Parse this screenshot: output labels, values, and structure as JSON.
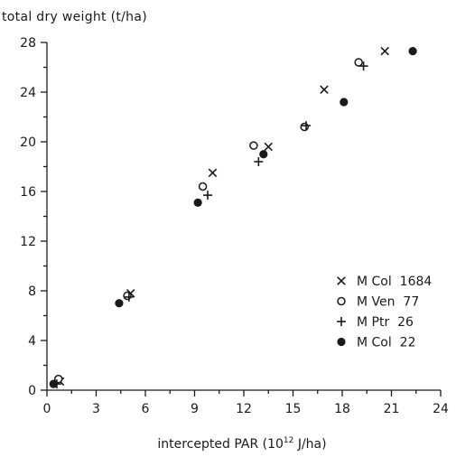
{
  "chart_data": {
    "type": "scatter",
    "title": "",
    "ylabel": "total dry weight (t/ha)",
    "xlabel_pre": "intercepted PAR (10",
    "xlabel_sup": "12",
    "xlabel_post": " J/ha)",
    "xlim": [
      0,
      24
    ],
    "ylim": [
      0,
      28
    ],
    "x_ticks": [
      0,
      3,
      6,
      9,
      12,
      15,
      18,
      21,
      24
    ],
    "y_ticks": [
      0,
      4,
      8,
      12,
      16,
      20,
      24,
      28
    ],
    "grid": false,
    "legend_position": "right",
    "series": [
      {
        "name": "M Col  1684",
        "marker": "x",
        "x": [
          0.8,
          5.1,
          10.1,
          13.5,
          16.9,
          20.6
        ],
        "y": [
          0.7,
          7.8,
          17.5,
          19.6,
          24.2,
          27.3
        ]
      },
      {
        "name": "M Ven  77",
        "marker": "open-circle",
        "x": [
          0.7,
          4.9,
          9.5,
          12.6,
          15.7,
          19.0
        ],
        "y": [
          0.9,
          7.6,
          16.4,
          19.7,
          21.2,
          26.4
        ]
      },
      {
        "name": "M Ptr  26",
        "marker": "plus",
        "x": [
          0.6,
          5.0,
          9.8,
          12.9,
          15.8,
          19.3
        ],
        "y": [
          0.5,
          7.5,
          15.7,
          18.4,
          21.3,
          26.1
        ]
      },
      {
        "name": "M Col  22",
        "marker": "filled-circle",
        "x": [
          0.4,
          4.4,
          9.2,
          13.2,
          18.1,
          22.3
        ],
        "y": [
          0.5,
          7.0,
          15.1,
          19.0,
          23.2,
          27.3
        ]
      }
    ]
  }
}
